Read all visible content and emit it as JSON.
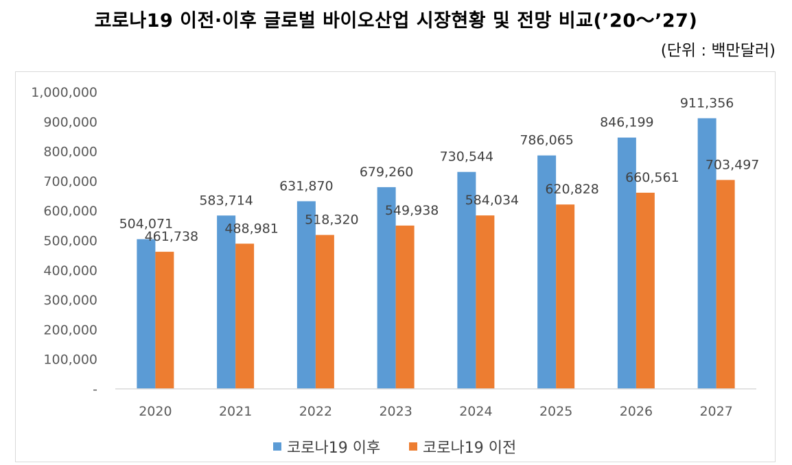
{
  "title": "코로나19 이전·이후 글로벌 바이오산업 시장현황 및 전망 비교(’20～’27)",
  "unit": "(단위 : 백만달러)",
  "colors": {
    "after": "#5b9bd5",
    "before": "#ed7d31",
    "axis": "#d9d9d9"
  },
  "chart_data": {
    "type": "bar",
    "categories": [
      "2020",
      "2021",
      "2022",
      "2023",
      "2024",
      "2025",
      "2026",
      "2027"
    ],
    "series": [
      {
        "name": "코로나19 이후",
        "values": [
          504071,
          583714,
          631870,
          679260,
          730544,
          786065,
          846199,
          911356
        ],
        "labels": [
          "504,071",
          "583,714",
          "631,870",
          "679,260",
          "730,544",
          "786,065",
          "846,199",
          "911,356"
        ]
      },
      {
        "name": "코로나19 이전",
        "values": [
          461738,
          488981,
          518320,
          549938,
          584034,
          620828,
          660561,
          703497
        ],
        "labels": [
          "461,738",
          "488,981",
          "518,320",
          "549,938",
          "584,034",
          "620,828",
          "660,561",
          "703,497"
        ]
      }
    ],
    "ylim": [
      0,
      1000000
    ],
    "yticks": [
      {
        "value": 0,
        "label": "-"
      },
      {
        "value": 100000,
        "label": "100,000"
      },
      {
        "value": 200000,
        "label": "200,000"
      },
      {
        "value": 300000,
        "label": "300,000"
      },
      {
        "value": 400000,
        "label": "400,000"
      },
      {
        "value": 500000,
        "label": "500,000"
      },
      {
        "value": 600000,
        "label": "600,000"
      },
      {
        "value": 700000,
        "label": "700,000"
      },
      {
        "value": 800000,
        "label": "800,000"
      },
      {
        "value": 900000,
        "label": "900,000"
      },
      {
        "value": 1000000,
        "label": "1,000,000"
      }
    ],
    "grid": false,
    "legend": "bottom"
  }
}
